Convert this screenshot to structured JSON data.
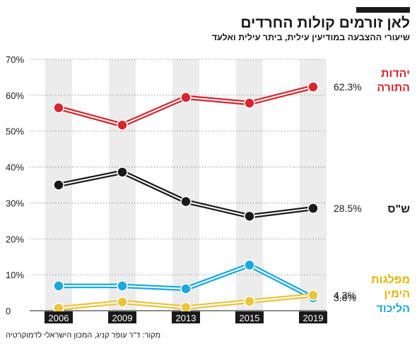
{
  "header": {
    "title": "לאן זורמים קולות החרדים",
    "subtitle": "שיעורי ההצבעה במודיעין עילית, ביתר עילית ואלעד",
    "source": "מקור: ד\"ר עופר קניג, המכון הישראלי לדמוקרטיה"
  },
  "chart_data": {
    "type": "line",
    "categories": [
      "2006",
      "2009",
      "2013",
      "2015",
      "2019"
    ],
    "ylim": [
      0,
      70
    ],
    "yticks": [
      0,
      10,
      20,
      30,
      40,
      50,
      60,
      70
    ],
    "ytick_labels": [
      "0",
      "10%",
      "20%",
      "30%",
      "40%",
      "50%",
      "60%",
      "70%"
    ],
    "grid": "horizontal dotted; alternating vertical bands per year",
    "legend": "series names at right end of each line",
    "series": [
      {
        "name": "יהדות התורה",
        "color": "#d7262f",
        "values": [
          56.5,
          51.7,
          59.4,
          57.8,
          62.3
        ],
        "end_label": "62.3%"
      },
      {
        "name": "ש\"ס",
        "color": "#1a1a1a",
        "values": [
          35.0,
          38.6,
          30.4,
          26.3,
          28.5
        ],
        "end_label": "28.5%"
      },
      {
        "name": "הליכוד",
        "color": "#1aa9df",
        "values": [
          6.9,
          6.9,
          6.1,
          12.7,
          3.6
        ],
        "end_label": "3.6%"
      },
      {
        "name": "מפלגות הימין",
        "color": "#e9c53c",
        "values": [
          0.7,
          2.4,
          0.9,
          2.6,
          4.3
        ],
        "end_label": "4.3%"
      }
    ]
  },
  "labels": {
    "utj": "יהדות\nהתורה",
    "shas": "ש\"ס",
    "right": "מפלגות\nהימין",
    "likud": "הליכוד"
  }
}
